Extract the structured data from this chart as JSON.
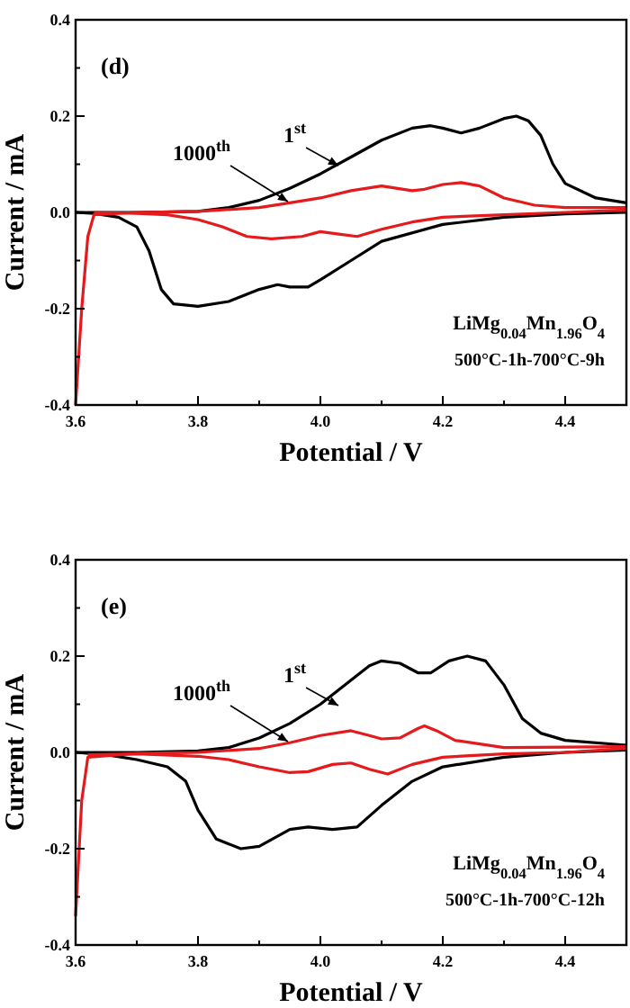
{
  "chart_data": [
    {
      "type": "line",
      "title": "(d)",
      "xlabel": "Potential / V",
      "ylabel": "Current / mA",
      "xlim": [
        3.6,
        4.5
      ],
      "ylim": [
        -0.4,
        0.4
      ],
      "xticks": [
        3.6,
        {
          "value": 3.7,
          "label": null
        },
        3.8,
        {
          "value": 3.9,
          "label": null
        },
        {
          "value": 4.0,
          "label": "4.0"
        },
        {
          "value": 4.1,
          "label": null
        },
        4.2,
        {
          "value": 4.3,
          "label": null
        },
        4.4
      ],
      "yticks": [
        -0.4,
        {
          "value": -0.3,
          "label": null
        },
        -0.2,
        {
          "value": -0.1,
          "label": null
        },
        {
          "value": 0,
          "label": "0.0"
        },
        {
          "value": 0.1,
          "label": null
        },
        0.2,
        {
          "value": 0.3,
          "label": null
        },
        0.4
      ],
      "line_style": "solid",
      "series": [
        {
          "color": "#000000",
          "x": [
            3.6,
            3.7,
            3.8,
            3.85,
            3.9,
            3.95,
            4.0,
            4.05,
            4.1,
            4.15,
            4.18,
            4.2,
            4.23,
            4.26,
            4.3,
            4.32,
            4.34,
            4.36,
            4.38,
            4.4,
            4.45,
            4.5
          ],
          "values": [
            0,
            0,
            0.002,
            0.01,
            0.025,
            0.05,
            0.08,
            0.115,
            0.15,
            0.175,
            0.18,
            0.175,
            0.165,
            0.175,
            0.195,
            0.2,
            0.19,
            0.16,
            0.1,
            0.06,
            0.03,
            0.02
          ]
        },
        {
          "color": "#000000",
          "x": [
            3.6,
            3.63,
            3.67,
            3.7,
            3.72,
            3.74,
            3.76,
            3.8,
            3.85,
            3.9,
            3.93,
            3.95,
            3.98,
            4.0,
            4.05,
            4.1,
            4.2,
            4.3,
            4.4,
            4.5
          ],
          "values": [
            0,
            -0.002,
            -0.01,
            -0.03,
            -0.08,
            -0.16,
            -0.19,
            -0.195,
            -0.185,
            -0.16,
            -0.15,
            -0.155,
            -0.155,
            -0.14,
            -0.1,
            -0.06,
            -0.025,
            -0.01,
            -0.003,
            0.0
          ]
        },
        {
          "color": "#e41a1c",
          "x": [
            3.6,
            3.61,
            3.62,
            3.63,
            3.7,
            3.8,
            3.9,
            3.95,
            4.0,
            4.05,
            4.1,
            4.15,
            4.17,
            4.2,
            4.23,
            4.26,
            4.3,
            4.35,
            4.4,
            4.5
          ],
          "values": [
            -0.4,
            -0.2,
            -0.05,
            -0.005,
            0,
            0.002,
            0.01,
            0.02,
            0.03,
            0.045,
            0.055,
            0.045,
            0.048,
            0.058,
            0.062,
            0.055,
            0.03,
            0.015,
            0.01,
            0.01
          ]
        },
        {
          "color": "#e41a1c",
          "x": [
            3.63,
            3.7,
            3.75,
            3.8,
            3.84,
            3.88,
            3.92,
            3.97,
            4.0,
            4.03,
            4.06,
            4.1,
            4.15,
            4.2,
            4.3,
            4.4,
            4.5
          ],
          "values": [
            0,
            -0.002,
            -0.005,
            -0.015,
            -0.03,
            -0.05,
            -0.055,
            -0.05,
            -0.04,
            -0.045,
            -0.05,
            -0.035,
            -0.02,
            -0.01,
            -0.005,
            0,
            0.005
          ]
        }
      ],
      "annotations": [
        "1$^{st}$",
        "1000$^{th}$",
        "LiMg$_{0.04}$Mn$_{1.96}$O$_{4}$",
        "500°C-1h-700°C-9h"
      ]
    },
    {
      "type": "line",
      "title": "(e)",
      "xlabel": "Potential / V",
      "ylabel": "Current / mA",
      "xlim": [
        3.6,
        4.5
      ],
      "ylim": [
        -0.4,
        0.4
      ],
      "xticks": [
        3.6,
        {
          "value": 3.7,
          "label": null
        },
        3.8,
        {
          "value": 3.9,
          "label": null
        },
        {
          "value": 4.0,
          "label": "4.0"
        },
        {
          "value": 4.1,
          "label": null
        },
        4.2,
        {
          "value": 4.3,
          "label": null
        },
        4.4
      ],
      "yticks": [
        -0.4,
        {
          "value": -0.3,
          "label": null
        },
        -0.2,
        {
          "value": -0.1,
          "label": null
        },
        {
          "value": 0,
          "label": "0.0"
        },
        {
          "value": 0.1,
          "label": null
        },
        0.2,
        {
          "value": 0.3,
          "label": null
        },
        0.4
      ],
      "line_style": "solid",
      "series": [
        {
          "color": "#000000",
          "x": [
            3.6,
            3.7,
            3.8,
            3.85,
            3.9,
            3.95,
            4.0,
            4.05,
            4.08,
            4.1,
            4.13,
            4.16,
            4.18,
            4.21,
            4.24,
            4.27,
            4.3,
            4.33,
            4.36,
            4.4,
            4.5
          ],
          "values": [
            0,
            0,
            0.003,
            0.01,
            0.03,
            0.06,
            0.1,
            0.15,
            0.18,
            0.19,
            0.185,
            0.165,
            0.165,
            0.19,
            0.2,
            0.19,
            0.14,
            0.07,
            0.04,
            0.025,
            0.015
          ]
        },
        {
          "color": "#000000",
          "x": [
            3.6,
            3.65,
            3.7,
            3.75,
            3.78,
            3.8,
            3.83,
            3.87,
            3.9,
            3.95,
            3.98,
            4.02,
            4.06,
            4.1,
            4.15,
            4.2,
            4.3,
            4.4,
            4.5
          ],
          "values": [
            0,
            -0.005,
            -0.015,
            -0.03,
            -0.06,
            -0.12,
            -0.18,
            -0.2,
            -0.195,
            -0.16,
            -0.155,
            -0.16,
            -0.155,
            -0.11,
            -0.06,
            -0.03,
            -0.01,
            0,
            0.005
          ]
        },
        {
          "color": "#e41a1c",
          "x": [
            3.6,
            3.61,
            3.62,
            3.7,
            3.8,
            3.9,
            3.95,
            4.0,
            4.05,
            4.08,
            4.1,
            4.13,
            4.16,
            4.17,
            4.19,
            4.22,
            4.3,
            4.5
          ],
          "values": [
            -0.34,
            -0.1,
            -0.01,
            -0.002,
            0,
            0.008,
            0.02,
            0.035,
            0.045,
            0.035,
            0.028,
            0.03,
            0.05,
            0.055,
            0.045,
            0.025,
            0.01,
            0.012
          ]
        },
        {
          "color": "#e41a1c",
          "x": [
            3.62,
            3.7,
            3.8,
            3.85,
            3.9,
            3.95,
            3.98,
            4.02,
            4.05,
            4.08,
            4.11,
            4.15,
            4.2,
            4.3,
            4.4,
            4.5
          ],
          "values": [
            -0.005,
            -0.003,
            -0.008,
            -0.015,
            -0.03,
            -0.042,
            -0.04,
            -0.025,
            -0.022,
            -0.035,
            -0.045,
            -0.025,
            -0.01,
            -0.003,
            0,
            0.008
          ]
        }
      ],
      "annotations": [
        "1$^{st}$",
        "1000$^{th}$",
        "LiMg$_{0.04}$Mn$_{1.96}$O$_{4}$",
        "500°C-1h-700°C-12h"
      ]
    }
  ]
}
